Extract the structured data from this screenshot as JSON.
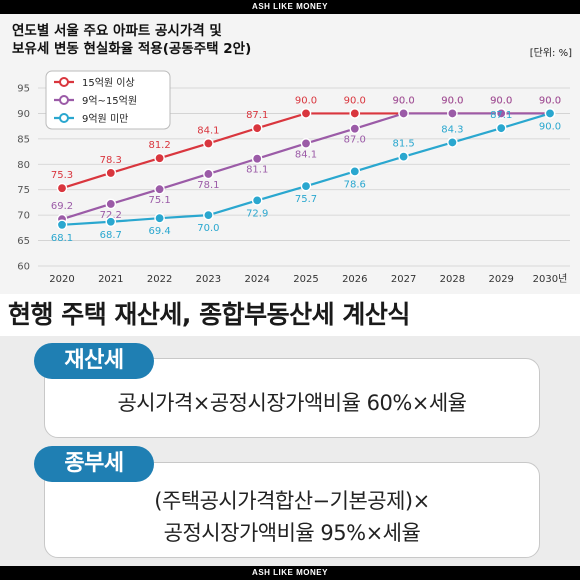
{
  "banner": "ASH LIKE MONEY",
  "chart_title": "연도별 서울 주요 아파트 공시가격 및\n보유세 변동 현실화율 적용(공동주택 2안)",
  "unit_label": "[단위: %]",
  "colors": {
    "series_high": "#d9363e",
    "series_mid": "#9b5ba7",
    "series_low": "#2aa7cf",
    "chart_bg": "#f4f4f4",
    "pill": "#1f7fb3"
  },
  "chart_data": {
    "type": "line",
    "title": "연도별 서울 주요 아파트 공시가격 및 보유세 변동 현실화율 적용(공동주택 2안)",
    "unit": "[단위: %]",
    "x": [
      "2020",
      "2021",
      "2022",
      "2023",
      "2024",
      "2025",
      "2026",
      "2027",
      "2028",
      "2029",
      "2030년"
    ],
    "yticks": [
      60,
      65,
      70,
      75,
      80,
      85,
      90,
      95
    ],
    "ylim": [
      60,
      95
    ],
    "grid": true,
    "legend_position": "top-left",
    "series": [
      {
        "name": "15억원 이상",
        "color": "#d9363e",
        "values": [
          75.3,
          78.3,
          81.2,
          84.1,
          87.1,
          90.0,
          90.0,
          90.0,
          90.0,
          90.0,
          90.0
        ],
        "labels": [
          "75.3",
          "78.3",
          "81.2",
          "84.1",
          "87.1",
          "90.0",
          "90.0",
          "90.0",
          "90.0",
          "90.0",
          "90.0"
        ]
      },
      {
        "name": "9억~15억원",
        "color": "#9b5ba7",
        "values": [
          69.2,
          72.2,
          75.1,
          78.1,
          81.1,
          84.1,
          87.0,
          90.0,
          90.0,
          90.0,
          90.0
        ],
        "labels": [
          "69.2",
          "72.2",
          "75.1",
          "78.1",
          "81.1",
          "84.1",
          "87.0",
          "90.0",
          "90.0",
          "90.0",
          "90.0"
        ]
      },
      {
        "name": "9억원 미만",
        "color": "#2aa7cf",
        "values": [
          68.1,
          68.7,
          69.4,
          70.0,
          72.9,
          75.7,
          78.6,
          81.5,
          84.3,
          87.1,
          90.0
        ],
        "labels": [
          "68.1",
          "68.7",
          "69.4",
          "70.0",
          "72.9",
          "75.7",
          "78.6",
          "81.5",
          "84.3",
          "87.1",
          "90.0"
        ]
      }
    ]
  },
  "formula_section": {
    "heading": "현행 주택 재산세, 종합부동산세 계산식",
    "property_tax": {
      "label": "재산세",
      "formula": "공시가격×공정시장가액비율 60%×세율"
    },
    "comprehensive_tax": {
      "label": "종부세",
      "formula_line1": "(주택공시가격합산−기본공제)×",
      "formula_line2": "공정시장가액비율 95%×세율"
    }
  }
}
